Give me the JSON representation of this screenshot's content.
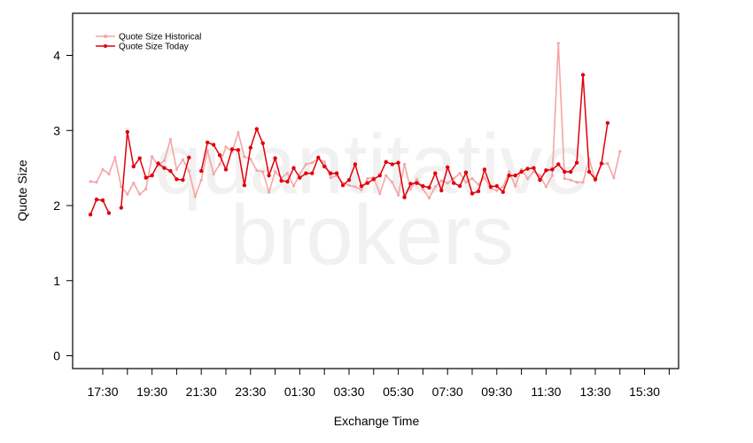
{
  "chart_data": {
    "type": "line",
    "title": "",
    "xlabel": "Exchange Time",
    "ylabel": "Quote Size",
    "x_tick_labels": [
      "17:30",
      "19:30",
      "21:30",
      "23:30",
      "01:30",
      "03:30",
      "05:30",
      "07:30",
      "09:30",
      "11:30",
      "13:30",
      "15:30"
    ],
    "y_ticks": [
      0,
      1,
      2,
      3,
      4
    ],
    "ylim": [
      -0.1,
      4.5
    ],
    "grid": false,
    "legend_position": "top-left",
    "watermark": [
      "quantitative",
      "brokers"
    ],
    "series": [
      {
        "name": "Quote Size Historical",
        "color": "#f4a6a6",
        "start_hour": 17.0,
        "step_hours": 0.25,
        "values": [
          2.32,
          2.31,
          2.48,
          2.42,
          2.64,
          2.25,
          2.15,
          2.3,
          2.15,
          2.22,
          2.65,
          2.53,
          2.6,
          2.88,
          2.48,
          2.61,
          2.46,
          2.12,
          2.34,
          2.73,
          2.42,
          2.55,
          2.78,
          2.72,
          2.97,
          2.65,
          2.62,
          2.47,
          2.45,
          2.18,
          2.45,
          2.37,
          2.43,
          2.26,
          2.42,
          2.55,
          2.57,
          2.63,
          2.58,
          2.37,
          2.4,
          2.3,
          2.27,
          2.25,
          2.21,
          2.36,
          2.37,
          2.16,
          2.4,
          2.31,
          2.14,
          2.55,
          2.22,
          2.35,
          2.22,
          2.1,
          2.25,
          2.33,
          2.3,
          2.36,
          2.43,
          2.31,
          2.36,
          2.28,
          2.37,
          2.23,
          2.2,
          2.25,
          2.45,
          2.26,
          2.48,
          2.36,
          2.45,
          2.4,
          2.25,
          2.4,
          4.16,
          2.36,
          2.34,
          2.31,
          2.31,
          2.62,
          2.33,
          2.55,
          2.56,
          2.37,
          2.72
        ]
      },
      {
        "name": "Quote Size Today",
        "color": "#e0000a",
        "start_hour": 17.0,
        "step_hours": 0.25,
        "values": [
          1.88,
          2.08,
          2.07,
          1.9,
          null,
          1.97,
          2.98,
          2.52,
          2.63,
          2.37,
          2.4,
          2.56,
          2.5,
          2.46,
          2.35,
          2.34,
          2.64,
          null,
          2.46,
          2.84,
          2.81,
          2.67,
          2.48,
          2.75,
          2.74,
          2.27,
          2.77,
          3.02,
          2.83,
          2.4,
          2.63,
          2.33,
          2.32,
          2.5,
          2.37,
          2.43,
          2.43,
          2.64,
          2.52,
          2.43,
          2.43,
          2.27,
          2.34,
          2.55,
          2.26,
          2.3,
          2.35,
          2.4,
          2.58,
          2.55,
          2.57,
          2.11,
          2.29,
          2.3,
          2.26,
          2.24,
          2.43,
          2.2,
          2.51,
          2.3,
          2.26,
          2.44,
          2.16,
          2.19,
          2.48,
          2.25,
          2.26,
          2.18,
          2.4,
          2.4,
          2.45,
          2.49,
          2.5,
          2.34,
          2.47,
          2.48,
          2.55,
          2.45,
          2.45,
          2.57,
          3.74,
          2.45,
          2.35,
          2.56,
          3.1
        ]
      }
    ]
  }
}
